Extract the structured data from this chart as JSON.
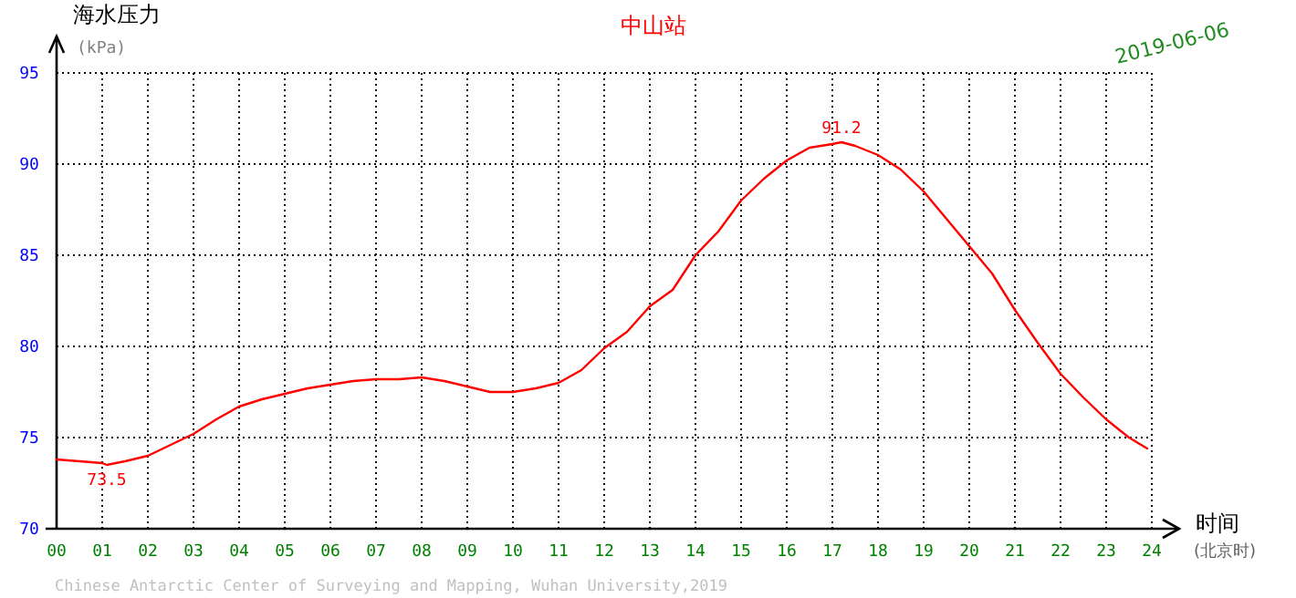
{
  "chart_data": {
    "type": "line",
    "title": "中山站",
    "ylabel": "海水压力\n(kPa)",
    "xlabel": "时间\n(北京时)",
    "x": [
      0,
      0.5,
      1,
      1.1,
      1.5,
      2,
      2.5,
      3,
      3.5,
      4,
      4.5,
      5,
      5.5,
      6,
      6.5,
      7,
      7.5,
      8,
      8.5,
      9,
      9.5,
      10,
      10.5,
      11,
      11.5,
      12,
      12.5,
      13,
      13.5,
      14,
      14.5,
      15,
      15.5,
      16,
      16.5,
      17,
      17.2,
      17.5,
      18,
      18.5,
      19,
      19.5,
      20,
      20.5,
      21,
      21.5,
      22,
      22.5,
      23,
      23.5,
      23.9
    ],
    "series": [
      {
        "color": "#ff0000",
        "values": [
          73.8,
          73.7,
          73.6,
          73.5,
          73.7,
          74.0,
          74.6,
          75.2,
          76.0,
          76.7,
          77.1,
          77.4,
          77.7,
          77.9,
          78.1,
          78.2,
          78.2,
          78.3,
          78.1,
          77.8,
          77.5,
          77.5,
          77.7,
          78.0,
          78.7,
          79.9,
          80.8,
          82.2,
          83.1,
          85.0,
          86.3,
          88.0,
          89.2,
          90.2,
          90.9,
          91.1,
          91.2,
          91.0,
          90.5,
          89.7,
          88.5,
          87.0,
          85.5,
          84.0,
          82.0,
          80.2,
          78.5,
          77.2,
          76.0,
          75.0,
          74.4
        ]
      }
    ],
    "xlim": [
      0,
      24
    ],
    "ylim": [
      70,
      95
    ],
    "xticks": [
      {
        "value": 0,
        "label": "00"
      },
      {
        "value": 1,
        "label": "01"
      },
      {
        "value": 2,
        "label": "02"
      },
      {
        "value": 3,
        "label": "03"
      },
      {
        "value": 4,
        "label": "04"
      },
      {
        "value": 5,
        "label": "05"
      },
      {
        "value": 6,
        "label": "06"
      },
      {
        "value": 7,
        "label": "07"
      },
      {
        "value": 8,
        "label": "08"
      },
      {
        "value": 9,
        "label": "09"
      },
      {
        "value": 10,
        "label": "10"
      },
      {
        "value": 11,
        "label": "11"
      },
      {
        "value": 12,
        "label": "12"
      },
      {
        "value": 13,
        "label": "13"
      },
      {
        "value": 14,
        "label": "14"
      },
      {
        "value": 15,
        "label": "15"
      },
      {
        "value": 16,
        "label": "16"
      },
      {
        "value": 17,
        "label": "17"
      },
      {
        "value": 18,
        "label": "18"
      },
      {
        "value": 19,
        "label": "19"
      },
      {
        "value": 20,
        "label": "20"
      },
      {
        "value": 21,
        "label": "21"
      },
      {
        "value": 22,
        "label": "22"
      },
      {
        "value": 23,
        "label": "23"
      },
      {
        "value": 24,
        "label": "24"
      }
    ],
    "yticks": [
      70,
      75,
      80,
      85,
      90,
      95
    ],
    "grid": true,
    "marker": "none",
    "line_style": "solid",
    "annotations": [
      {
        "text": "73.5",
        "x": 1.1,
        "y": 73.5
      },
      {
        "text": "91.2",
        "x": 17.2,
        "y": 91.2
      },
      "2019-06-06",
      "Chinese Antarctic Center of Surveying and Mapping, Wuhan University,2019"
    ]
  }
}
